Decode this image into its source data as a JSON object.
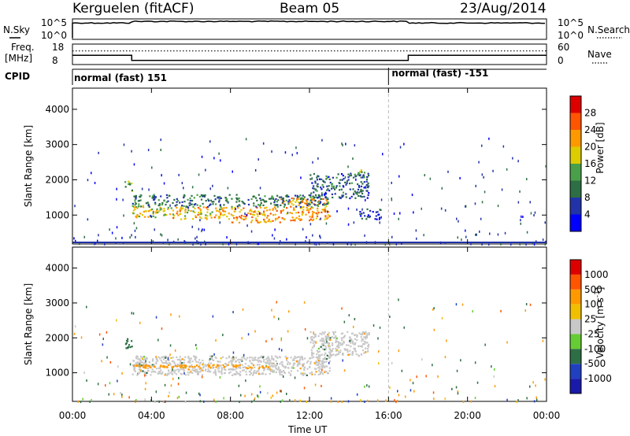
{
  "header": {
    "station": "Kerguelen (fitACF)",
    "beam": "Beam 05",
    "date": "23/Aug/2014"
  },
  "status_panels": {
    "nsky_label": "N.Sky",
    "nsearch_label": "N.Search",
    "nsky_ticks": [
      "10^5",
      "10^0"
    ],
    "nsearch_ticks": [
      "10^5",
      "10^0"
    ],
    "freq_label": "Freq.",
    "freq_unit": "[MHz]",
    "freq_ticks": [
      "18",
      "8"
    ],
    "nave_label": "Nave",
    "nave_ticks": [
      "60",
      "0"
    ],
    "cpid_label": "CPID",
    "cpid_segments": [
      {
        "label": "normal (fast) 151",
        "start_hour": 0,
        "end_hour": 16
      },
      {
        "label": "normal (fast) -151",
        "start_hour": 16,
        "end_hour": 24
      }
    ]
  },
  "colors": {
    "power_scale": [
      "#0000ff",
      "#2233aa",
      "#2e6e44",
      "#4aa04a",
      "#ddcc00",
      "#ff9900",
      "#ff5500",
      "#dd0000"
    ],
    "velocity_scale": [
      "#1a1aaa",
      "#2040c0",
      "#2e6e44",
      "#66cc33",
      "#c8c8c8",
      "#f0c000",
      "#ff9900",
      "#ff5500",
      "#dd0000"
    ],
    "ground_scatter": "#c8c8c8"
  },
  "chart_data": [
    {
      "type": "heatmap",
      "name": "power",
      "ylabel": "Slant Range [km]",
      "ylim": [
        180,
        4600
      ],
      "y_ticks": [
        1000,
        2000,
        3000,
        4000
      ],
      "xlim": [
        0,
        24
      ],
      "colorbar_label": "Power [dB]",
      "colorbar_ticks": [
        "4",
        "8",
        "12",
        "16",
        "20",
        "24",
        "28"
      ],
      "colorbar_range": [
        0,
        32
      ],
      "regions": [
        {
          "t0": 3.0,
          "t1": 5.0,
          "r0": 950,
          "r1": 1300,
          "value": 18
        },
        {
          "t0": 5.0,
          "t1": 8.0,
          "r0": 900,
          "r1": 1250,
          "value": 20
        },
        {
          "t0": 8.0,
          "t1": 10.5,
          "r0": 800,
          "r1": 1250,
          "value": 22
        },
        {
          "t0": 10.5,
          "t1": 13.0,
          "r0": 850,
          "r1": 1500,
          "value": 22
        },
        {
          "t0": 3.0,
          "t1": 13.0,
          "r0": 1250,
          "r1": 1600,
          "value": 10
        },
        {
          "t0": 12.0,
          "t1": 15.0,
          "r0": 1500,
          "r1": 2200,
          "value": 8
        },
        {
          "t0": 2.6,
          "t1": 3.0,
          "r0": 1700,
          "r1": 2000,
          "value": 14
        },
        {
          "t0": 14.2,
          "t1": 14.8,
          "r0": 2100,
          "r1": 2300,
          "value": 14
        },
        {
          "t0": 14.5,
          "t1": 15.6,
          "r0": 900,
          "r1": 1200,
          "value": 6
        }
      ]
    },
    {
      "type": "heatmap",
      "name": "velocity",
      "ylabel": "Slant Range [km]",
      "ylim": [
        180,
        4600
      ],
      "y_ticks": [
        1000,
        2000,
        3000,
        4000
      ],
      "xlim": [
        0,
        24
      ],
      "xlabel": "Time UT",
      "x_ticks": [
        "00:00",
        "04:00",
        "08:00",
        "12:00",
        "16:00",
        "20:00",
        "00:00"
      ],
      "colorbar_label": "Velocity [m s^-1]",
      "colorbar_ticks": [
        "-1000",
        "-500",
        "-100",
        "-25",
        "25",
        "100",
        "500",
        "1000"
      ],
      "regions": [
        {
          "t0": 3.0,
          "t1": 13.0,
          "r0": 950,
          "r1": 1500,
          "value": 0
        },
        {
          "t0": 12.0,
          "t1": 15.0,
          "r0": 1500,
          "r1": 2200,
          "value": 0
        },
        {
          "t0": 3.0,
          "t1": 10.0,
          "r0": 1150,
          "r1": 1250,
          "value": -300
        },
        {
          "t0": 2.6,
          "t1": 3.0,
          "r0": 1700,
          "r1": 2000,
          "value": 300
        }
      ]
    }
  ],
  "time_series": {
    "nsky_level": 0.8,
    "freq_values": [
      {
        "t0": 0,
        "t1": 3,
        "value": 12.5
      },
      {
        "t0": 3,
        "t1": 17,
        "value": 10.0
      },
      {
        "t0": 17,
        "t1": 24,
        "value": 12.5
      }
    ],
    "nave_level": 40
  }
}
